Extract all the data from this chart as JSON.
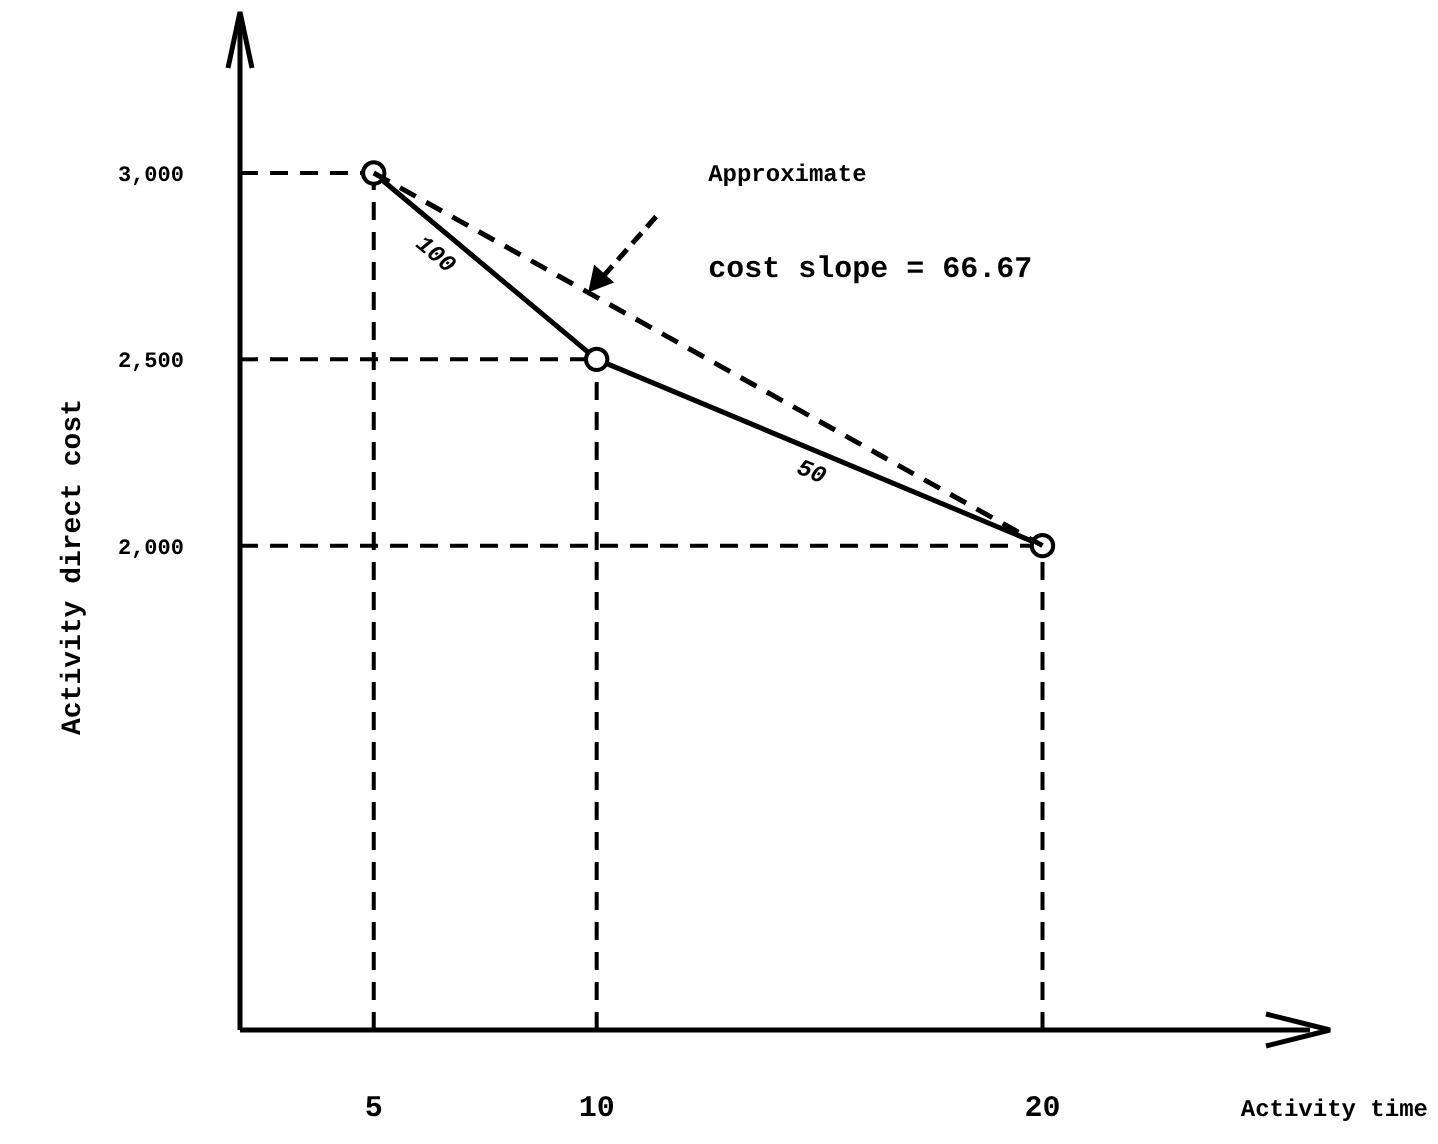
{
  "chart_data": {
    "type": "line",
    "xlabel": "Activity time",
    "ylabel": "Activity direct cost",
    "xlim": [
      2,
      26
    ],
    "ylim": [
      700,
      3400
    ],
    "xticks": [
      5,
      10,
      20
    ],
    "yticks": [
      {
        "value": 2000,
        "label": "2,000"
      },
      {
        "value": 2500,
        "label": "2,500"
      },
      {
        "value": 3000,
        "label": "3,000"
      }
    ],
    "grid": false,
    "series": [
      {
        "color": "#000000",
        "x": [
          5,
          10,
          20
        ],
        "values": [
          3000,
          2500,
          2000
        ],
        "marker": "circle",
        "line_style": "solid"
      },
      {
        "color": "#000000",
        "x": [
          5,
          20
        ],
        "values": [
          3000,
          2000
        ],
        "marker": "none",
        "line_style": "dashed"
      }
    ],
    "ref_lines": [
      {
        "axis": "x",
        "value": 5,
        "color": "#000000",
        "line_style": "dashed"
      },
      {
        "axis": "x",
        "value": 10,
        "color": "#000000",
        "line_style": "dashed"
      },
      {
        "axis": "x",
        "value": 20,
        "color": "#000000",
        "line_style": "dashed"
      },
      {
        "axis": "y",
        "value": 3000,
        "color": "#000000",
        "line_style": "dashed"
      },
      {
        "axis": "y",
        "value": 2500,
        "color": "#000000",
        "line_style": "dashed"
      },
      {
        "axis": "y",
        "value": 2000,
        "color": "#000000",
        "line_style": "dashed"
      }
    ],
    "annotations": [
      "Approximate",
      "cost slope = 66.67",
      "100",
      "50"
    ]
  }
}
